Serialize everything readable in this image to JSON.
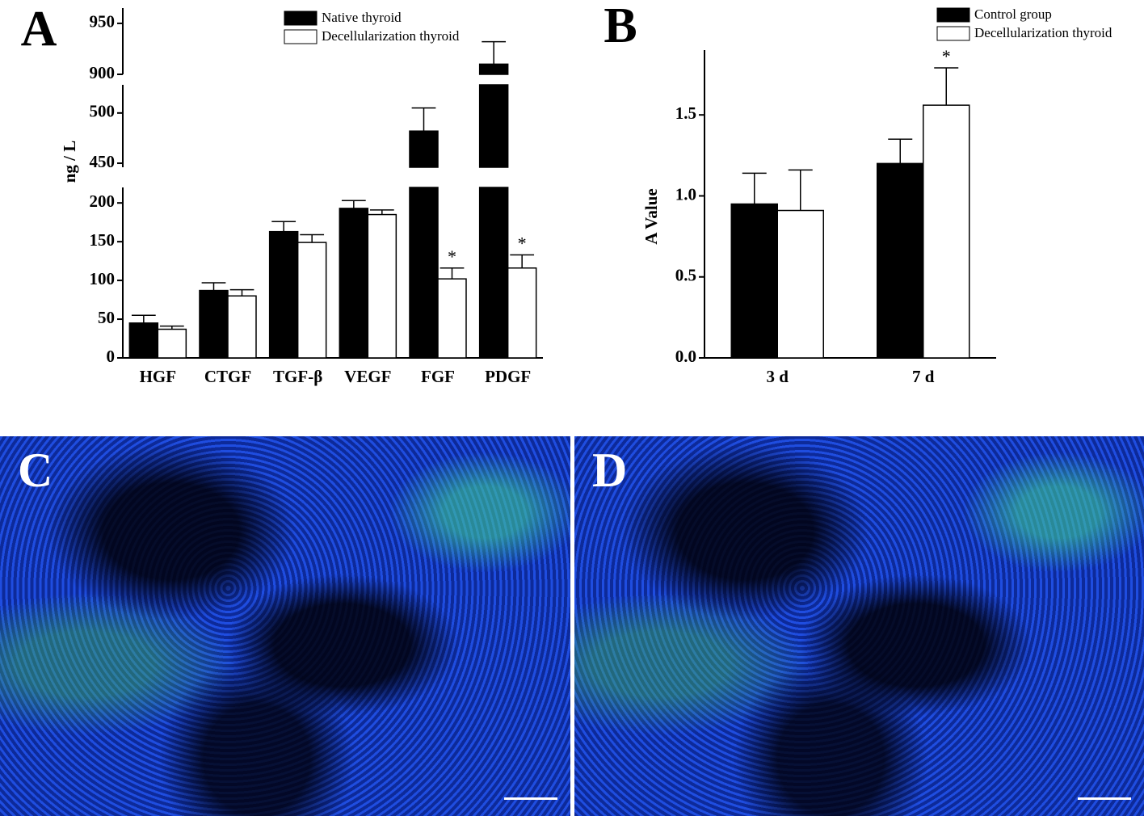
{
  "chart_data": [
    {
      "type": "bar",
      "panel": "A",
      "y_label": "ng / L",
      "categories": [
        "HGF",
        "CTGF",
        "TGF-β",
        "VEGF",
        "FGF",
        "PDGF"
      ],
      "series": [
        {
          "name": "Native thyroid",
          "color": "#000000",
          "values": [
            45,
            87,
            163,
            193,
            482,
            910
          ],
          "errors": [
            10,
            10,
            13,
            10,
            23,
            22
          ],
          "significance": [
            null,
            null,
            null,
            null,
            null,
            null
          ]
        },
        {
          "name": "Decellularization thyroid",
          "color": "#ffffff",
          "values": [
            37,
            80,
            149,
            185,
            102,
            116
          ],
          "errors": [
            4,
            8,
            10,
            6,
            14,
            17
          ],
          "significance": [
            null,
            null,
            null,
            null,
            "*",
            "*"
          ]
        }
      ],
      "y_segments": [
        {
          "ylim": [
            0,
            220
          ],
          "yticks": [
            0,
            50,
            100,
            150,
            200
          ]
        },
        {
          "ylim": [
            446,
            528
          ],
          "yticks": [
            450,
            500
          ]
        },
        {
          "ylim": [
            900,
            965
          ],
          "yticks": [
            900,
            950
          ]
        }
      ]
    },
    {
      "type": "bar",
      "panel": "B",
      "y_label": "A Value",
      "categories": [
        "3 d",
        "7 d"
      ],
      "series": [
        {
          "name": "Control group",
          "color": "#000000",
          "values": [
            0.95,
            1.2
          ],
          "errors": [
            0.19,
            0.15
          ],
          "significance": [
            null,
            null
          ]
        },
        {
          "name": "Decellularization thyroid",
          "color": "#ffffff",
          "values": [
            0.91,
            1.56
          ],
          "errors": [
            0.25,
            0.23
          ],
          "significance": [
            null,
            "*"
          ]
        }
      ],
      "ylim": [
        0,
        1.9
      ],
      "yticks": [
        {
          "value": 0,
          "label": "0.0"
        },
        0.5,
        {
          "value": 1,
          "label": "1.0"
        },
        1.5
      ]
    }
  ],
  "images": [
    {
      "panel": "C"
    },
    {
      "panel": "D"
    }
  ]
}
